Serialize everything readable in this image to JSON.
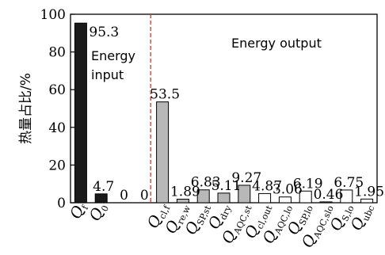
{
  "chart_data": {
    "type": "bar",
    "title": "",
    "xlabel": "",
    "ylabel": "热量占比/%",
    "ylim": [
      0,
      100
    ],
    "yticks": [
      "0",
      "20",
      "40",
      "60",
      "80",
      "100"
    ],
    "grid": false,
    "divider_after_index": 3,
    "categories": [
      {
        "main": "Q",
        "sub": "f"
      },
      {
        "main": "Q",
        "sub": "0"
      },
      {
        "main": "",
        "sub": ""
      },
      {
        "main": "",
        "sub": ""
      },
      {
        "main": "Q",
        "sub": "cl,f"
      },
      {
        "main": "Q",
        "sub": "re,w"
      },
      {
        "main": "Q",
        "sub": "SP,st"
      },
      {
        "main": "Q",
        "sub": "dry"
      },
      {
        "main": "Q",
        "sub": "AQC,st"
      },
      {
        "main": "Q",
        "sub": "cl,out"
      },
      {
        "main": "Q",
        "sub": "AQC,lo"
      },
      {
        "main": "Q",
        "sub": "SP,lo"
      },
      {
        "main": "Q",
        "sub": "AQC,slo"
      },
      {
        "main": "Q",
        "sub": "S,lo"
      },
      {
        "main": "Q",
        "sub": "ubc"
      }
    ],
    "values": [
      95.3,
      4.7,
      0,
      0,
      53.5,
      1.89,
      6.83,
      5.11,
      9.27,
      4.87,
      3.06,
      6.19,
      0.46,
      6.75,
      1.95
    ],
    "labels": [
      "95.3",
      "4.7",
      "0",
      "0",
      "53.5",
      "1.89",
      "6.83",
      "5.11",
      "9.27",
      "4.87",
      "3.06",
      "6.19",
      "0.46",
      "6.75",
      "1.95"
    ],
    "bar_colors": [
      "#1a1a1a",
      "#1a1a1a",
      "#ffffff",
      "#ffffff",
      "#b8b8b8",
      "#b8b8b8",
      "#b8b8b8",
      "#b8b8b8",
      "#b8b8b8",
      "#ffffff",
      "#ffffff",
      "#ffffff",
      "#ffffff",
      "#ffffff",
      "#ffffff"
    ],
    "divider_color": "#e0302a",
    "annotations": {
      "input_line1": "Energy",
      "input_line2": "input",
      "output": "Energy output"
    }
  }
}
